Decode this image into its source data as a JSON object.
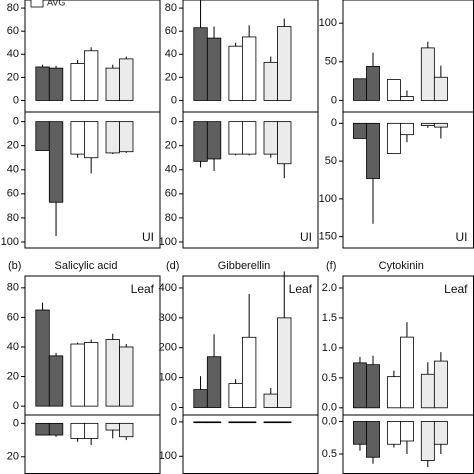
{
  "chart_data": [
    {
      "type": "bar",
      "legend": "AVG",
      "annotation": "UI",
      "colors": [
        "#5f5f5f",
        "#5f5f5f",
        "#ffffff",
        "#ffffff",
        "#ebebeb",
        "#ebebeb"
      ],
      "upper": {
        "ylim": [
          -10,
          87
        ],
        "yticks": [
          0,
          20,
          40,
          60,
          80
        ],
        "values": [
          29,
          28,
          32,
          43,
          28,
          36
        ],
        "errors": [
          2,
          2,
          3,
          3,
          3,
          2
        ]
      },
      "lower": {
        "inverted": true,
        "ylim": [
          -8,
          105
        ],
        "yticks": [
          0,
          20,
          40,
          60,
          80,
          100
        ],
        "values": [
          24,
          67,
          27,
          30,
          26,
          25
        ],
        "errors": [
          0,
          28,
          3,
          13,
          1,
          1
        ]
      }
    },
    {
      "type": "bar",
      "annotation": "UI",
      "colors": [
        "#5f5f5f",
        "#5f5f5f",
        "#ffffff",
        "#ffffff",
        "#ebebeb",
        "#ebebeb"
      ],
      "upper": {
        "ylim": [
          -10,
          87
        ],
        "yticks": [
          0,
          20,
          40,
          60,
          80
        ],
        "values": [
          63,
          54,
          47,
          55,
          33,
          64
        ],
        "errors": [
          27,
          10,
          3,
          10,
          5,
          7
        ]
      },
      "lower": {
        "inverted": true,
        "ylim": [
          -8,
          105
        ],
        "yticks": [
          0,
          20,
          40,
          60,
          80,
          100
        ],
        "values": [
          33,
          31,
          27,
          27,
          27,
          35
        ],
        "errors": [
          5,
          10,
          1,
          1,
          3,
          12
        ]
      }
    },
    {
      "type": "bar",
      "annotation": "UI",
      "colors": [
        "#5f5f5f",
        "#5f5f5f",
        "#ffffff",
        "#ffffff",
        "#ebebeb",
        "#ebebeb"
      ],
      "upper": {
        "ylim": [
          -15,
          130
        ],
        "yticks": [
          0,
          50,
          100
        ],
        "values": [
          28,
          44,
          27,
          5,
          68,
          30
        ],
        "errors": [
          0,
          18,
          0,
          8,
          8,
          15
        ]
      },
      "lower": {
        "inverted": true,
        "ylim": [
          -15,
          165
        ],
        "yticks": [
          0,
          50,
          100,
          150
        ],
        "values": [
          20,
          73,
          40,
          15,
          3,
          5
        ],
        "errors": [
          0,
          60,
          0,
          10,
          3,
          15
        ]
      }
    },
    {
      "type": "bar",
      "label": "(b)",
      "title": "Salicylic acid",
      "annotation": "Leaf",
      "colors": [
        "#5f5f5f",
        "#5f5f5f",
        "#ffffff",
        "#ffffff",
        "#ebebeb",
        "#ebebeb"
      ],
      "upper": {
        "ylim": [
          -6,
          88
        ],
        "yticks": [
          0,
          20,
          40,
          60,
          80
        ],
        "values": [
          65,
          34,
          42,
          43,
          45,
          40
        ],
        "errors": [
          5,
          2,
          1,
          2,
          4,
          2
        ]
      },
      "lower": {
        "inverted": true,
        "ylim": [
          -5,
          30
        ],
        "yticks": [
          0,
          20
        ],
        "values": [
          7,
          7,
          9,
          9,
          4,
          8
        ],
        "errors": [
          0,
          1,
          2,
          4,
          5,
          2
        ]
      }
    },
    {
      "type": "bar",
      "label": "(d)",
      "title": "Gibberellin",
      "annotation": "Leaf",
      "colors": [
        "#5f5f5f",
        "#5f5f5f",
        "#ffffff",
        "#ffffff",
        "#ebebeb",
        "#ebebeb"
      ],
      "upper": {
        "ylim": [
          -25,
          440
        ],
        "yticks": [
          0,
          100,
          200,
          300,
          400
        ],
        "values": [
          60,
          170,
          80,
          235,
          45,
          300
        ],
        "errors": [
          45,
          75,
          15,
          145,
          20,
          155
        ]
      },
      "lower": {
        "inverted": true,
        "ylim": [
          -20,
          150
        ],
        "yticks": [
          0,
          100
        ],
        "values": [
          2,
          2,
          2,
          2,
          2,
          2
        ],
        "errors": [
          0,
          0,
          0,
          0,
          0,
          0
        ]
      }
    },
    {
      "type": "bar",
      "label": "(f)",
      "title": "Cytokinin",
      "annotation": "Leaf",
      "colors": [
        "#5f5f5f",
        "#5f5f5f",
        "#ffffff",
        "#ffffff",
        "#ebebeb",
        "#ebebeb"
      ],
      "upper": {
        "ylim": [
          -0.12,
          2.2
        ],
        "yticks": [
          {
            "value": 0,
            "label": "0.0"
          },
          0.5,
          {
            "value": 1,
            "label": "1.0"
          },
          1.5,
          {
            "value": 2,
            "label": "2.0"
          }
        ],
        "values": [
          0.75,
          0.72,
          0.52,
          1.18,
          0.56,
          0.78
        ],
        "errors": [
          0.1,
          0.15,
          0.1,
          0.25,
          0.2,
          0.15
        ]
      },
      "lower": {
        "inverted": true,
        "ylim": [
          -0.1,
          0.8
        ],
        "yticks": [
          {
            "value": 0,
            "label": "0.0"
          },
          0.5
        ],
        "values": [
          0.35,
          0.55,
          0.35,
          0.3,
          0.6,
          0.35
        ],
        "errors": [
          0.1,
          0.1,
          0.05,
          0.2,
          0.1,
          0.15
        ]
      }
    }
  ]
}
